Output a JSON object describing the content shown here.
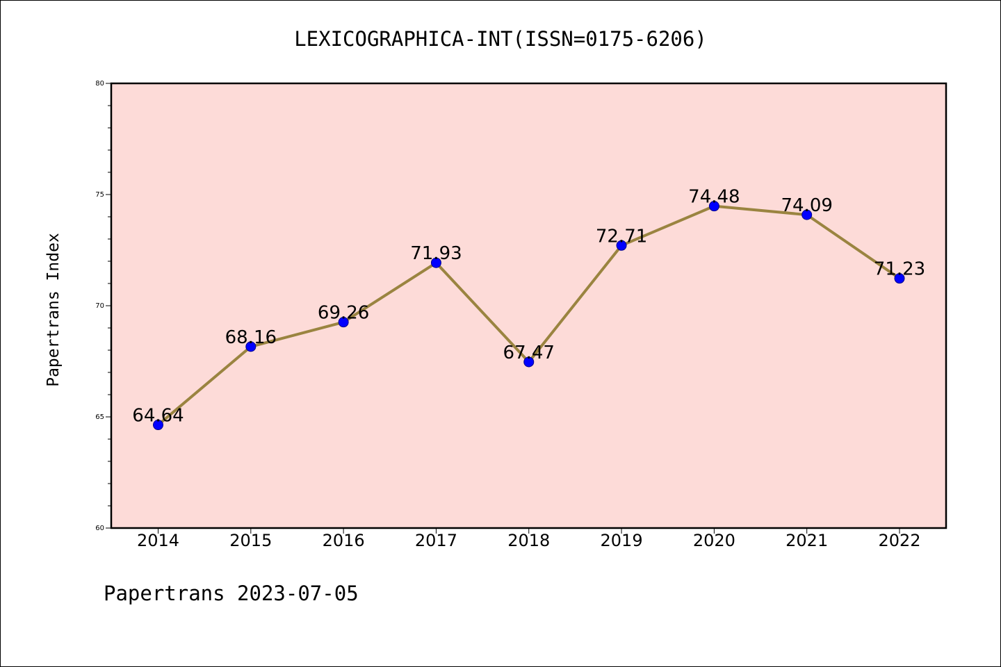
{
  "chart_data": {
    "type": "line",
    "title": "LEXICOGRAPHICA-INT(ISSN=0175-6206)",
    "xlabel": "",
    "ylabel": "Papertrans Index",
    "categories": [
      "2014",
      "2015",
      "2016",
      "2017",
      "2018",
      "2019",
      "2020",
      "2021",
      "2022"
    ],
    "values": [
      64.64,
      68.16,
      69.26,
      71.93,
      67.47,
      72.71,
      74.48,
      74.09,
      71.23
    ],
    "value_labels": [
      "64.64",
      "68.16",
      "69.26",
      "71.93",
      "67.47",
      "72.71",
      "74.48",
      "74.09",
      "71.23"
    ],
    "ylim": [
      60,
      80
    ],
    "y_ticks": [
      "60",
      "65",
      "70",
      "75",
      "80"
    ],
    "y_minor_step": 1,
    "grid": false,
    "legend": "none",
    "colors": {
      "plot_background": "#fddbd8",
      "line": "#9a8440",
      "marker": "#0000ff",
      "marker_edge": "#00008b",
      "axes": "#000000"
    }
  },
  "footer": {
    "text": "Papertrans 2023-07-05"
  }
}
